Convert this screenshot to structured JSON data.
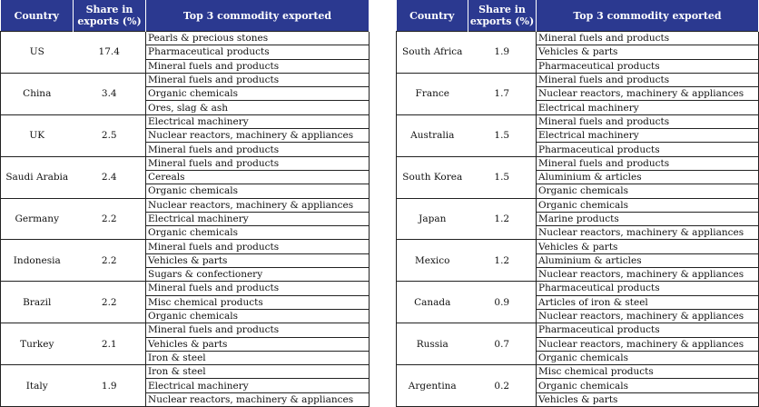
{
  "headers": [
    "Country",
    "Share in exports (%)",
    "Top 3 commodity exported"
  ],
  "left": [
    {
      "country": "US",
      "share": "17.4",
      "items": [
        "Pearls & precious stones",
        "Pharmaceutical products",
        "Mineral fuels and products"
      ]
    },
    {
      "country": "China",
      "share": "3.4",
      "items": [
        "Mineral fuels and products",
        "Organic chemicals",
        "Ores, slag & ash"
      ]
    },
    {
      "country": "UK",
      "share": "2.5",
      "items": [
        "Electrical machinery",
        "Nuclear reactors, machinery & appliances",
        "Mineral fuels and products"
      ]
    },
    {
      "country": "Saudi Arabia",
      "share": "2.4",
      "items": [
        "Mineral fuels and products",
        "Cereals",
        "Organic chemicals"
      ]
    },
    {
      "country": "Germany",
      "share": "2.2",
      "items": [
        "Nuclear reactors, machinery & appliances",
        "Electrical machinery",
        "Organic chemicals"
      ]
    },
    {
      "country": "Indonesia",
      "share": "2.2",
      "items": [
        "Mineral fuels and products",
        "Vehicles & parts",
        "Sugars & confectionery"
      ]
    },
    {
      "country": "Brazil",
      "share": "2.2",
      "items": [
        "Mineral fuels and products",
        "Misc chemical products",
        "Organic chemicals"
      ]
    },
    {
      "country": "Turkey",
      "share": "2.1",
      "items": [
        "Mineral fuels and products",
        "Vehicles & parts",
        "Iron & steel"
      ]
    },
    {
      "country": "Italy",
      "share": "1.9",
      "items": [
        "Iron & steel",
        "Electrical machinery",
        "Nuclear reactors, machinery & appliances"
      ]
    }
  ],
  "right": [
    {
      "country": "South Africa",
      "share": "1.9",
      "items": [
        "Mineral fuels and products",
        "Vehicles & parts",
        "Pharmaceutical products"
      ]
    },
    {
      "country": "France",
      "share": "1.7",
      "items": [
        "Mineral fuels and products",
        "Nuclear reactors, machinery & appliances",
        "Electrical machinery"
      ]
    },
    {
      "country": "Australia",
      "share": "1.5",
      "items": [
        "Mineral fuels and products",
        "Electrical machinery",
        "Pharmaceutical products"
      ]
    },
    {
      "country": "South Korea",
      "share": "1.5",
      "items": [
        "Mineral fuels and products",
        "Aluminium & articles",
        "Organic chemicals"
      ]
    },
    {
      "country": "Japan",
      "share": "1.2",
      "items": [
        "Organic chemicals",
        "Marine products",
        "Nuclear reactors, machinery & appliances"
      ]
    },
    {
      "country": "Mexico",
      "share": "1.2",
      "items": [
        "Vehicles & parts",
        "Aluminium & articles",
        "Nuclear reactors, machinery & appliances"
      ]
    },
    {
      "country": "Canada",
      "share": "0.9",
      "items": [
        "Pharmaceutical products",
        "Articles of iron & steel",
        "Nuclear reactors, machinery & appliances"
      ]
    },
    {
      "country": "Russia",
      "share": "0.7",
      "items": [
        "Pharmaceutical products",
        "Nuclear reactors, machinery & appliances",
        "Organic chemicals"
      ]
    },
    {
      "country": "Argentina",
      "share": "0.2",
      "items": [
        "Misc chemical products",
        "Organic chemicals",
        "Vehicles & parts"
      ]
    }
  ]
}
